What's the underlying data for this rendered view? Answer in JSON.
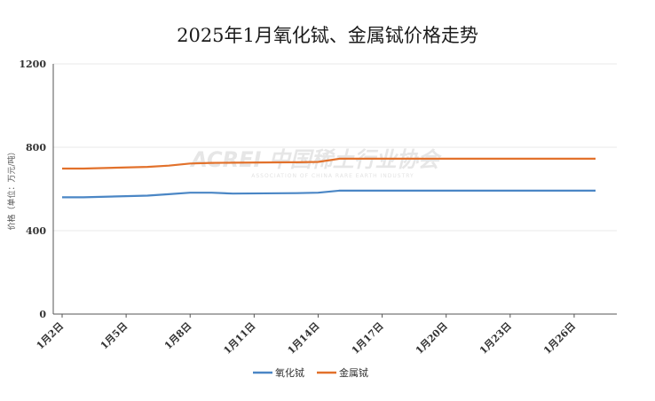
{
  "chart_data": {
    "type": "line",
    "title": "2025年1月氧化铽、金属铽价格走势",
    "ylabel": "价格（单位：万元/吨）",
    "xlabel": "",
    "ylim": [
      0,
      1200
    ],
    "yticks": [
      0,
      400,
      800,
      1200
    ],
    "x": [
      "1月2日",
      "1月3日",
      "1月6日",
      "1月7日",
      "1月8日",
      "1月9日",
      "1月10日",
      "1月13日",
      "1月14日",
      "1月15日",
      "1月16日",
      "1月17日",
      "1月20日",
      "1月21日",
      "1月22日",
      "1月23日",
      "1月24日",
      "1月27日"
    ],
    "xtick_labels": [
      "1月2日",
      "1月5日",
      "1月8日",
      "1月11日",
      "1月14日",
      "1月17日",
      "1月20日",
      "1月23日",
      "1月26日"
    ],
    "series": [
      {
        "name": "氧化铽",
        "color": "#4a86c5",
        "values": [
          560,
          560,
          568,
          575,
          582,
          582,
          578,
          580,
          582,
          592,
          592,
          592,
          592,
          592,
          592,
          592,
          592,
          592
        ]
      },
      {
        "name": "金属铽",
        "color": "#e2712b",
        "values": [
          698,
          698,
          706,
          712,
          722,
          725,
          726,
          728,
          730,
          745,
          745,
          745,
          745,
          745,
          745,
          745,
          745,
          745
        ]
      }
    ],
    "grid": true,
    "legend_position": "bottom"
  },
  "watermark": {
    "main": "ACREI 中国稀土行业协会",
    "sub": "ASSOCIATION OF CHINA RARE EARTH INDUSTRY"
  }
}
